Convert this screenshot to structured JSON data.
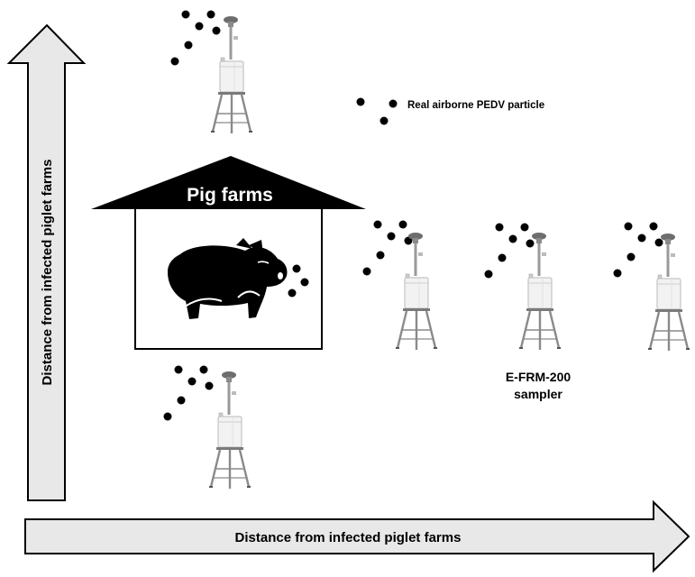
{
  "axes": {
    "vertical_label": "Distance from infected piglet farms",
    "horizontal_label": "Distance from infected piglet farms"
  },
  "farm": {
    "title": "Pig farms",
    "icon": "pig-icon"
  },
  "legend": {
    "particle_label": "Real airborne PEDV particle"
  },
  "sampler": {
    "label_line1": "E-FRM-200",
    "label_line2": "sampler",
    "icon": "air-sampler-icon"
  },
  "colors": {
    "arrow_fill": "#e8e8e8",
    "arrow_stroke": "#000000",
    "roof": "#000000",
    "particle": "#000000",
    "sampler_body": "#f2f2f2",
    "sampler_metal": "#8a8a8a"
  }
}
